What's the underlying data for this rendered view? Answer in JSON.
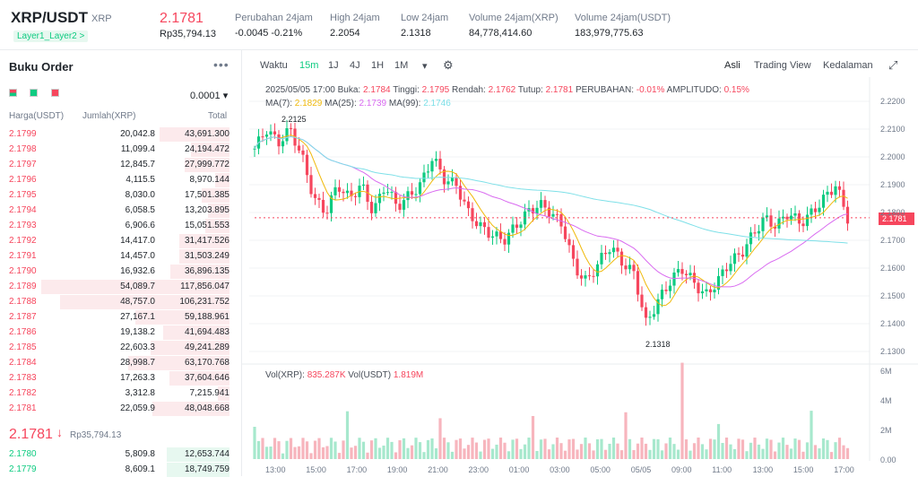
{
  "header": {
    "pair": "XRP/USDT",
    "coin": "XRP",
    "tag": "Layer1_Layer2 >",
    "price": "2.1781",
    "price_idr": "Rp35,794.13",
    "stats": [
      {
        "label": "Perubahan 24jam",
        "value": "-0.0045 -0.21%"
      },
      {
        "label": "High 24jam",
        "value": "2.2054"
      },
      {
        "label": "Low 24jam",
        "value": "2.1318"
      },
      {
        "label": "Volume 24jam(XRP)",
        "value": "84,778,414.60"
      },
      {
        "label": "Volume 24jam(USDT)",
        "value": "183,979,775.63"
      }
    ]
  },
  "orderbook": {
    "title": "Buku Order",
    "precision": "0.0001",
    "cols": [
      "Harga(USDT)",
      "Jumlah(XRP)",
      "Total"
    ],
    "asks": [
      {
        "p": "2.1799",
        "q": "20,042.8",
        "t": "43,691.300"
      },
      {
        "p": "2.1798",
        "q": "11,099.4",
        "t": "24,194.472"
      },
      {
        "p": "2.1797",
        "q": "12,845.7",
        "t": "27,999.772"
      },
      {
        "p": "2.1796",
        "q": "4,115.5",
        "t": "8,970.144"
      },
      {
        "p": "2.1795",
        "q": "8,030.0",
        "t": "17,501.385"
      },
      {
        "p": "2.1794",
        "q": "6,058.5",
        "t": "13,203.895"
      },
      {
        "p": "2.1793",
        "q": "6,906.6",
        "t": "15,051.553"
      },
      {
        "p": "2.1792",
        "q": "14,417.0",
        "t": "31,417.526"
      },
      {
        "p": "2.1791",
        "q": "14,457.0",
        "t": "31,503.249"
      },
      {
        "p": "2.1790",
        "q": "16,932.6",
        "t": "36,896.135"
      },
      {
        "p": "2.1789",
        "q": "54,089.7",
        "t": "117,856.047"
      },
      {
        "p": "2.1788",
        "q": "48,757.0",
        "t": "106,231.752"
      },
      {
        "p": "2.1787",
        "q": "27,167.1",
        "t": "59,188.961"
      },
      {
        "p": "2.1786",
        "q": "19,138.2",
        "t": "41,694.483"
      },
      {
        "p": "2.1785",
        "q": "22,603.3",
        "t": "49,241.289"
      },
      {
        "p": "2.1784",
        "q": "28,998.7",
        "t": "63,170.768"
      },
      {
        "p": "2.1783",
        "q": "17,263.3",
        "t": "37,604.646"
      },
      {
        "p": "2.1782",
        "q": "3,312.8",
        "t": "7,215.941"
      },
      {
        "p": "2.1781",
        "q": "22,059.9",
        "t": "48,048.668"
      }
    ],
    "last_price": "2.1781",
    "last_idr": "Rp35,794.13",
    "bids": [
      {
        "p": "2.1780",
        "q": "5,809.8",
        "t": "12,653.744"
      },
      {
        "p": "2.1779",
        "q": "8,609.1",
        "t": "18,749.759"
      }
    ]
  },
  "chart": {
    "toolbar": [
      "Waktu",
      "15m",
      "1J",
      "4J",
      "1H",
      "1M"
    ],
    "views": [
      "Asli",
      "Trading View",
      "Kedalaman"
    ],
    "ohlc": {
      "date": "2025/05/05 17:00",
      "buka_l": "Buka:",
      "buka": "2.1784",
      "tinggi_l": "Tinggi:",
      "tinggi": "2.1795",
      "rendah_l": "Rendah:",
      "rendah": "2.1762",
      "tutup_l": "Tutup:",
      "tutup": "2.1781",
      "chg_l": "PERUBAHAN:",
      "chg": "-0.01%",
      "amp_l": "AMPLITUDO:",
      "amp": "0.15%"
    },
    "ma": {
      "ma7_l": "MA(7):",
      "ma7": "2.1829",
      "ma25_l": "MA(25):",
      "ma25": "2.1739",
      "ma99_l": "MA(99):",
      "ma99": "2.1746"
    },
    "vol": {
      "xrp_l": "Vol(XRP):",
      "xrp": "835.287K",
      "usdt_l": "Vol(USDT)",
      "usdt": "1.819M"
    },
    "price_axis": [
      "2.2200",
      "2.2100",
      "2.2000",
      "2.1900",
      "2.1800",
      "2.1700",
      "2.1600",
      "2.1500",
      "2.1400",
      "2.1300"
    ],
    "vol_axis": [
      "6M",
      "4M",
      "2M",
      "0.00"
    ],
    "time_axis": [
      "13:00",
      "15:00",
      "17:00",
      "19:00",
      "21:00",
      "23:00",
      "01:00",
      "03:00",
      "05:00",
      "05/05",
      "09:00",
      "11:00",
      "13:00",
      "15:00",
      "17:00"
    ],
    "hi_label": "2.2125",
    "lo_label": "2.1318",
    "current": "2.1781",
    "colors": {
      "up": "#0ecb81",
      "down": "#f6465d",
      "ma7": "#f0b90b",
      "ma25": "#d96bf0",
      "ma99": "#7ee0e8"
    }
  }
}
